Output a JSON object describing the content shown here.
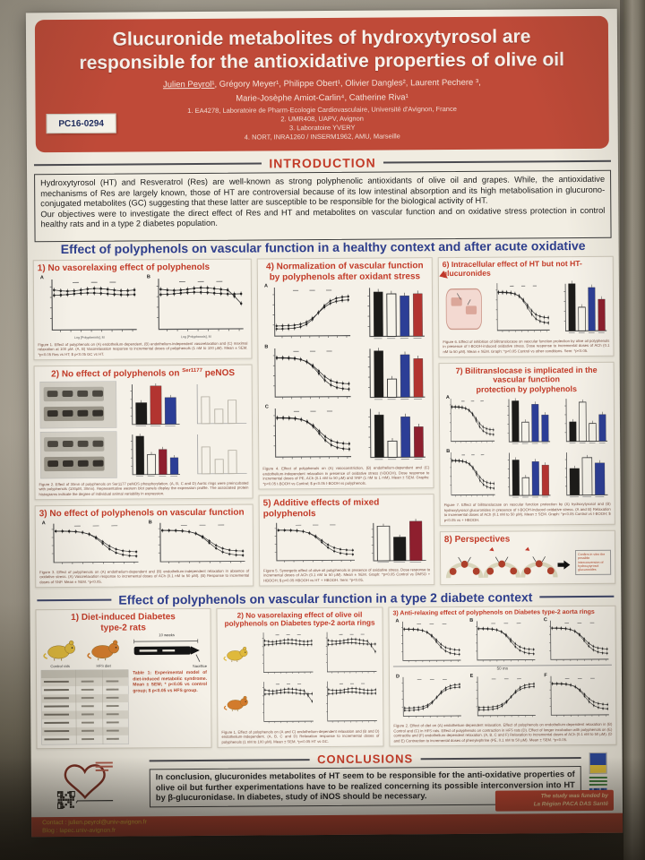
{
  "colors": {
    "header_red": "#bf4a38",
    "footer_red": "#b8402e",
    "section_blue": "#2e3e8c",
    "panel_title_red": "#c23b28",
    "bar_black": "#1c1b19",
    "bar_white": "#f6f3ea",
    "bar_blue": "#2c3e96",
    "bar_red": "#b23430",
    "bar_darkred": "#8e1f2e",
    "poster_bg": "#f0ece1",
    "wall": "#aaa496",
    "rat_control": "#dfb93c",
    "rat_hfs": "#d27b2c"
  },
  "poster": {
    "badge": "PC16-0294",
    "header": {
      "title_line1": "Glucuronide metabolites of hydroxytyrosol are",
      "title_line2": "responsible for the antioxidative properties of olive oil",
      "authors_lead": "Julien Peyrol¹",
      "authors_rest": ", Grégory Meyer¹, Philippe Obert¹, Olivier Dangles², Laurent Pechere ³,",
      "authors_line2": "Marie-Josèphe Amiot-Carlin⁴, Catherine Riva¹",
      "affiliations": [
        "1. EA4278, Laboratoire de Pharm-Ecologie Cardiovasculaire, Université d'Avignon, France",
        "2. UMR408, UAPV, Avignon",
        "3. Laboratoire YVERY",
        "4. NORT, INRA1260 / INSERM1962, AMU, Marseille"
      ]
    },
    "introduction": {
      "heading": "INTRODUCTION",
      "paragraph1": "Hydroxytyrosol (HT) and Resveratrol (Res) are well-known as strong polyphenolic antioxidants of olive oil and grapes. While, the antioxidative mechanisms of Res are largely known, those of HT are controversial because of its low intestinal absorption and its high metabolisation in glucurono-conjugated metabolites (GC) suggesting that these latter are susceptible to be responsible for the biological activity of HT.",
      "paragraph2": "Our objectives were to investigate the direct effect of Res and HT and metabolites on vascular function and on oxidative stress protection in control healthy rats and in a type 2 diabetes population."
    },
    "section1": {
      "heading": "Effect of polyphenols on vascular function in a healthy context and after acute oxidative stress",
      "panels": {
        "p1": {
          "title": "1) No vasorelaxing effect of polyphenols",
          "letters": [
            "A",
            "B"
          ],
          "xlabel": "Log [Polyphenols], M",
          "caption": "Figure 1. Effect of polyphenols on (A) endothelium-dependent, (B) endothelium-independent vasorelaxation and (C) maximal relaxation at 100 µM. (A, B) Vasorelaxation response to incremental doses of polyphenols (1 nM to 100 µM). Mean ± SEM. *p<0.05 Res vs HT; $ p<0.05 GC vs HT."
        },
        "p2": {
          "title_pre": "2) No effect of polyphenols on ",
          "title_sup": "Ser1177",
          "title_post": " peNOS",
          "caption": "Figure 2. Effect of 30mn of polyphenols on Ser1177 peNOS phosphorylation. (A, B, C and D) Aortic rings were preincubated with polyphenols (100µM, 30mn). Representative western blot panels display the expression profile. The associated protein histograms indicate the degree of individual animal variability in expression."
        },
        "p3": {
          "title": "3) No effect of polyphenols on vascular function",
          "letters": [
            "A",
            "B"
          ],
          "caption": "Figure 3. Effect of polyphenols on (A) endothelium-dependent and (B) endothelium-independent relaxation in absence of oxidative stress. (A) Vasorelaxation response to incremental doses of ACh (0.1 nM to 50 µM). (B) Response to incremental doses of SNP. Mean ± SEM. *p<0.05."
        },
        "p4": {
          "title_line1": "4) Normalization of vascular function",
          "title_line2": "by polyphenols after oxidant stress",
          "letters": [
            "A",
            "B",
            "C"
          ],
          "caption": "Figure 4. Effect of polyphenols on (A) vasoconstriction, (B) endothelium-dependent and (C) endothelium-independent relaxation in presence of oxidative stress (t-BOOH). Dose response to incremental doses of PE, ACh (0.1 nM to 50 µM) and SNP (1 nM to 1 mM). Mean ± SEM. Graphs: *p<0.05 t-BOOH vs Control; $ p<0.05 t-BOOH vs polyphenols."
        },
        "p5": {
          "title": "5) Additive effects of mixed polyphenols",
          "caption": "Figure 5. Synergetic effect of olive oil polyphenols in presence of oxidative stress. Dose response to incremental doses of ACh (0.1 nM to 50 µM). Mean ± SEM. Graph: *p<0.05 Control vs DMSO + HBOOH; $ p<0.05 HBOOH vs HT + HBOOH. Sem: *p<0.05."
        },
        "p6": {
          "title": "6) Intracellular effect of HT but not HT-glucuronides",
          "caption": "Figure 6. Effect of inhibition of bilitranslocase on vascular function protection by olive oil polyphenols in presence of t-BOOH-induced oxidative stress. Dose response to incremental doses of ACh (0.1 nM to 50 µM). Mean ± SEM. Graph: *p<0.05 Control vs other conditions. Sem: *p<0.05."
        },
        "p7": {
          "title_line1": "7) Bilitranslocase is implicated in the vascular function",
          "title_line2": "protection by polyphenols",
          "letters": [
            "A",
            "B"
          ],
          "caption": "Figure 7. Effect of bilitranslocase on vascular function protection by (A) hydroxytyrosol and (B) hydroxytyrosol glucuronides in presence of t-BOOH-induced oxidative stress. (A and B) Relaxation to incremental doses of ACh (0.1 nM to 50 µM). Mean ± SEM. Graph: *p<0.05 Control vs t-BOOH; $ p<0.05 vs + HBOOH."
        },
        "p8": {
          "title": "8) Perspectives",
          "note": "Confirm in vitro the possible interconversion of hydroxytyrosol glucuronides"
        }
      }
    },
    "section2": {
      "heading": "Effect of polyphenols on vascular function in a type 2 diabete context",
      "panels": {
        "d1": {
          "title_line1": "1) Diet-induced Diabetes",
          "title_line2": "type-2 rats",
          "rat1": "Control rats",
          "rat2": "HFS diet",
          "weeks": "10 weeks",
          "sacrifice": "Sacrifice",
          "caption": "Table 1: Experimental model of diet-induced metabolic syndrome. Mean ± SEM; * p<0.05 vs control group; $ p<0.05 vs HFS group."
        },
        "d2": {
          "title_line1": "2) No vasorelaxing effect of olive oil",
          "title_line2": "polyphenols on Diabetes type-2 aorta rings",
          "caption": "Figure 1. Effect of polyphenols on (A and C) endothelium-dependent relaxation and (B and D) endothelium-independent. (A, B, C and D) Relaxation response to incremental doses of polyphenols (1 nM to 100 µM). Mean ± SEM. *p<0.05 HT vs GC."
        },
        "d3": {
          "title": "3) Anti-relaxing effect of polyphenols on Diabetes type-2 aorta rings",
          "letters": [
            "A",
            "B",
            "C",
            "D",
            "E",
            "F"
          ],
          "mid_label": "50 mn",
          "caption": "Figure 2. Effect of diet on (A) endothelium-dependent relaxation. Effect of polyphenols on endothelium-dependent relaxation in (B) Control and (C) in HFS rats. Effect of polyphenols on contraction in HFS rats (D). Effect of longer incubation with polyphenols on (E) contractile and (F) endothelium-dependent relaxation. (A, B, C and F) Relaxation to incremental doses of ACh (0.1 nM to 50 µM). (D and E) Contraction to incremental doses of phenylephrine (PE, 0.1 nM to 50 µM). Mean ± SEM. *p<0.05."
        }
      }
    },
    "conclusions": {
      "heading": "CONCLUSIONS",
      "text": "In conclusion, glucuronides metabolites of HT seem to be responsible for the anti-oxidative properties of olive oil but further experimentations have to be realized concerning its possible interconversion into HT by β-glucuronidase. In diabetes, study of iNOS should be necessary.",
      "funding_line1": "The study was funded by",
      "funding_line2": "La Région PACA DAS Santé"
    },
    "footer": {
      "contact": "Contact : julien.peyrol@univ-avignon.fr",
      "blog": "Blog : lapec.univ-avignon.fr"
    }
  }
}
